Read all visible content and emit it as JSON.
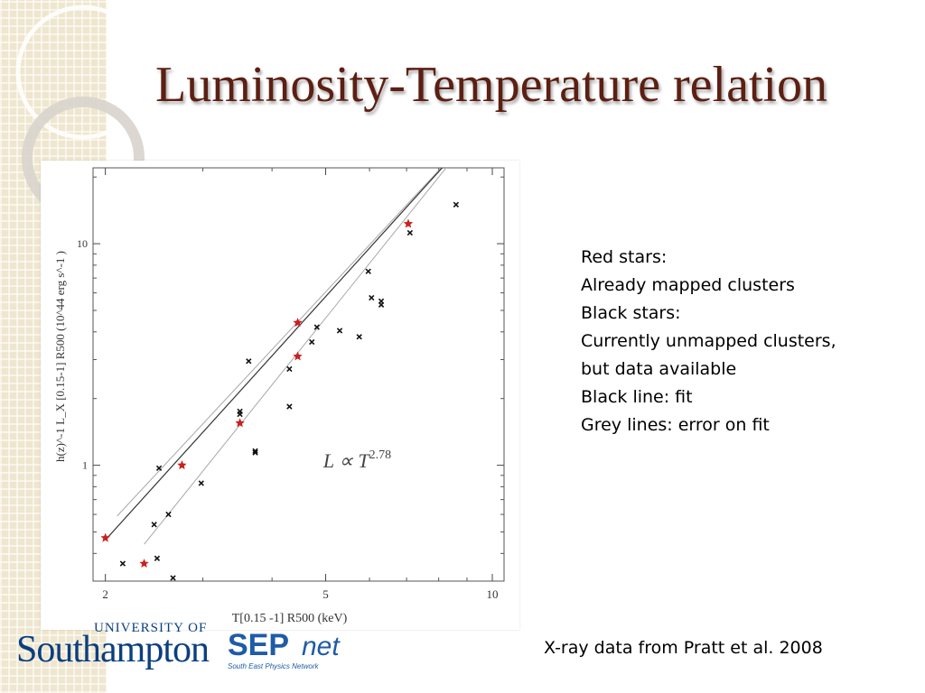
{
  "slide": {
    "title": "Luminosity-Temperature relation",
    "notes": [
      "Red stars:",
      "Already mapped clusters",
      "Black stars:",
      "Currently unmapped clusters,",
      "but data available",
      "Black line: fit",
      "Grey lines: error on fit"
    ],
    "credit": "X-ray data from Pratt et al. 2008",
    "logos": {
      "university_line": "UNIVERSITY OF",
      "university_name": "Southampton",
      "sepnet_main": "SEP",
      "sepnet_suffix": "net",
      "sepnet_sub": "South East Physics Network"
    }
  },
  "chart_data": {
    "type": "scatter",
    "xscale": "log",
    "yscale": "log",
    "xlim": [
      1.9,
      10.5
    ],
    "ylim": [
      0.3,
      22
    ],
    "xticks": [
      2,
      5,
      10
    ],
    "xtick_labels": [
      "2",
      "5",
      "10"
    ],
    "yticks": [
      1,
      10
    ],
    "ytick_labels": [
      "1",
      "10"
    ],
    "xlabel": "T[0.15 -1] R500 (keV)",
    "ylabel": "h(z)^-1 L_X [0.15-1] R500 (10^44 erg s^-1 )",
    "annotation": "L ∝ T^2.78",
    "colors": {
      "mapped": "#cc1f1f",
      "unmapped": "#111111",
      "fit": "#333333",
      "error": "#a8a8a8"
    },
    "series": [
      {
        "name": "Red stars: already mapped clusters",
        "marker": "star",
        "points": [
          [
            2.0,
            0.47
          ],
          [
            2.35,
            0.36
          ],
          [
            2.75,
            1.0
          ],
          [
            3.5,
            1.55
          ],
          [
            4.45,
            3.1
          ],
          [
            4.45,
            4.4
          ],
          [
            7.05,
            12.3
          ]
        ]
      },
      {
        "name": "Black stars: currently unmapped clusters",
        "marker": "x",
        "points": [
          [
            2.15,
            0.36
          ],
          [
            2.45,
            0.54
          ],
          [
            2.48,
            0.38
          ],
          [
            2.5,
            0.97
          ],
          [
            2.6,
            0.6
          ],
          [
            2.65,
            0.31
          ],
          [
            2.98,
            0.83
          ],
          [
            3.5,
            1.7
          ],
          [
            3.5,
            1.75
          ],
          [
            3.63,
            2.95
          ],
          [
            3.73,
            1.16
          ],
          [
            3.73,
            1.14
          ],
          [
            4.3,
            1.84
          ],
          [
            4.3,
            2.72
          ],
          [
            4.72,
            3.6
          ],
          [
            4.82,
            4.2
          ],
          [
            5.3,
            4.05
          ],
          [
            5.75,
            3.8
          ],
          [
            5.97,
            7.5
          ],
          [
            6.05,
            5.7
          ],
          [
            6.3,
            5.3
          ],
          [
            6.3,
            5.5
          ],
          [
            7.1,
            11.2
          ],
          [
            8.6,
            15.0
          ]
        ]
      }
    ],
    "fit": {
      "exponent": 2.78,
      "line": [
        [
          2.0,
          0.46
        ],
        [
          9.4,
          33.0
        ]
      ]
    },
    "error_lines": [
      {
        "line": [
          [
            2.1,
            0.59
          ],
          [
            9.4,
            33.0
          ]
        ]
      },
      {
        "line": [
          [
            2.35,
            0.44
          ],
          [
            9.4,
            33.0
          ]
        ]
      }
    ]
  }
}
